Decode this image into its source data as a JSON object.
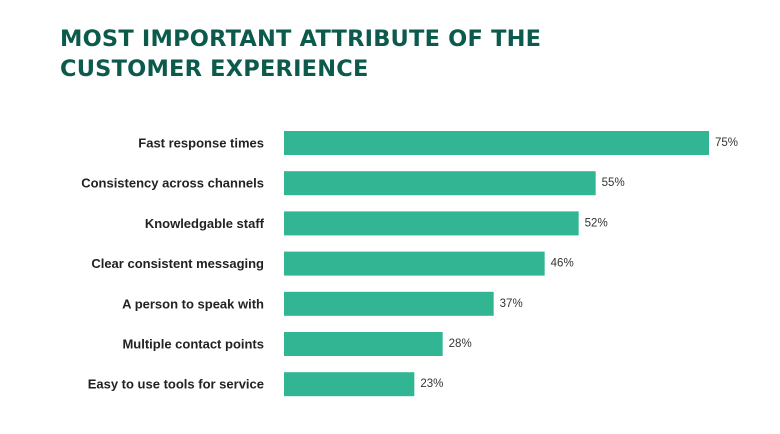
{
  "title_lines": [
    "MOST IMPORTANT ATTRIBUTE OF THE",
    "CUSTOMER EXPERIENCE"
  ],
  "colors": {
    "title": "#0c5a4c",
    "bar": "#31b593",
    "label": "#222222"
  },
  "chart_data": {
    "type": "bar",
    "orientation": "horizontal",
    "title": "MOST IMPORTANT ATTRIBUTE OF THE CUSTOMER EXPERIENCE",
    "categories": [
      "Fast response times",
      "Consistency across channels",
      "Knowledgable staff",
      "Clear consistent messaging",
      "A person to speak with",
      "Multiple contact points",
      "Easy to use tools for service"
    ],
    "values": [
      75,
      55,
      52,
      46,
      37,
      28,
      23
    ],
    "value_labels": [
      "75%",
      "55%",
      "52%",
      "46%",
      "37%",
      "28%",
      "23%"
    ],
    "xlim": [
      0,
      75
    ],
    "grid": false,
    "legend": "none",
    "xlabel": "",
    "ylabel": ""
  }
}
